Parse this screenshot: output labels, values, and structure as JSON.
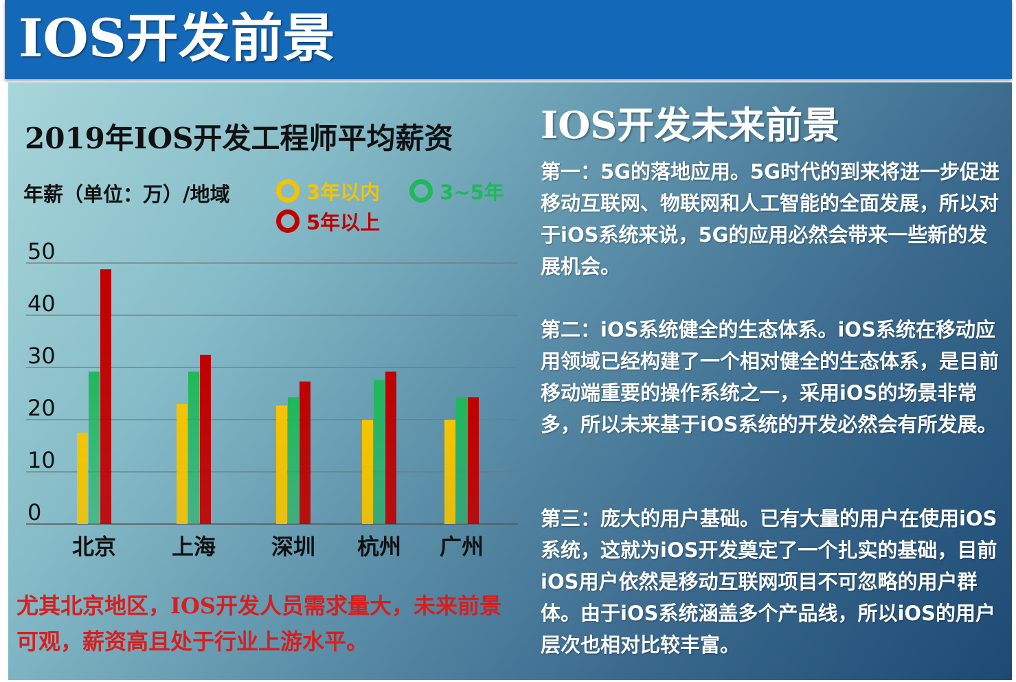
{
  "header": {
    "title": "IOS开发前景"
  },
  "chart_data": {
    "type": "bar",
    "title": "2019年IOS开发工程师平均薪资",
    "ylabel": "年薪（单位：万）/地域",
    "categories": [
      "北京",
      "上海",
      "深圳",
      "杭州",
      "广州"
    ],
    "series": [
      {
        "name": "3年以内",
        "color": "#f5c300",
        "values": [
          17.5,
          23,
          22.7,
          20,
          20
        ]
      },
      {
        "name": "3~5年",
        "color": "#1fb85a",
        "values": [
          29.2,
          29.2,
          24.3,
          27.6,
          24.3
        ]
      },
      {
        "name": "5年以上",
        "color": "#c00000",
        "values": [
          48.8,
          32.4,
          27.3,
          29.2,
          24.3
        ]
      }
    ],
    "ylim": [
      0,
      50
    ],
    "yticks": [
      "0",
      "10",
      "20",
      "30",
      "40",
      "50"
    ],
    "grid": true,
    "legend": "top-right"
  },
  "note": "尤其北京地区，IOS开发人员需求量大，未来前景可观，薪资高且处于行业上游水平。",
  "right": {
    "title": "IOS开发未来前景",
    "paragraphs": [
      "第一：5G的落地应用。5G时代的到来将进一步促进移动互联网、物联网和人工智能的全面发展，所以对于iOS系统来说，5G的应用必然会带来一些新的发展机会。",
      "第二：iOS系统健全的生态体系。iOS系统在移动应用领域已经构建了一个相对健全的生态体系，是目前移动端重要的操作系统之一，采用iOS的场景非常多，所以未来基于iOS系统的开发必然会有所发展。",
      "第三：庞大的用户基础。已有大量的用户在使用iOS系统，这就为iOS开发奠定了一个扎实的基础，目前iOS用户依然是移动互联网项目不可忽略的用户群体。由于iOS系统涵盖多个产品线，所以iOS的用户层次也相对比较丰富。"
    ]
  }
}
